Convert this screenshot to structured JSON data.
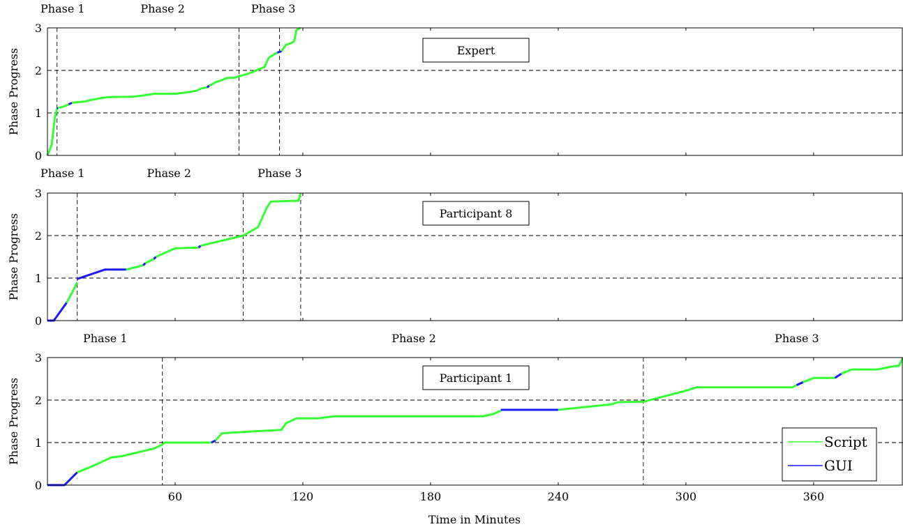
{
  "figure": {
    "xlabel": "Time in Minutes",
    "legend": {
      "placement": "bottom-right of last panel",
      "entries": [
        {
          "name": "Script",
          "color": "#33ff33"
        },
        {
          "name": "GUI",
          "color": "#1a1aff"
        }
      ]
    }
  },
  "chart_data": [
    {
      "type": "line",
      "title": "Expert",
      "ylabel": "Phase Progress",
      "xlim": [
        0,
        402
      ],
      "ylim": [
        0,
        3
      ],
      "x_ticks": [],
      "y_ticks": [
        0,
        1,
        2,
        3
      ],
      "grid": "horizontal dashed at 1 and 2",
      "phase_boundaries": [
        4.5,
        90,
        109
      ],
      "phase_labels": [
        {
          "text": "Phase 1",
          "x": 0
        },
        {
          "text": "Phase 2",
          "x": 47
        },
        {
          "text": "Phase 3",
          "x": 99
        }
      ],
      "segments": [
        {
          "tool": "Script",
          "points": [
            [
              0,
              0
            ],
            [
              2,
              0.25
            ],
            [
              3.5,
              0.9
            ],
            [
              4.5,
              1.1
            ]
          ]
        },
        {
          "tool": "GUI",
          "points": [
            [
              4.5,
              1.1
            ],
            [
              5,
              1.12
            ]
          ]
        },
        {
          "tool": "Script",
          "points": [
            [
              5,
              1.12
            ],
            [
              7,
              1.14
            ],
            [
              10,
              1.2
            ]
          ]
        },
        {
          "tool": "GUI",
          "points": [
            [
              10,
              1.2
            ],
            [
              11.5,
              1.24
            ]
          ]
        },
        {
          "tool": "Script",
          "points": [
            [
              11.5,
              1.24
            ],
            [
              18,
              1.27
            ],
            [
              20,
              1.3
            ],
            [
              28,
              1.37
            ],
            [
              40,
              1.38
            ],
            [
              45,
              1.41
            ],
            [
              50,
              1.45
            ],
            [
              60,
              1.45
            ],
            [
              65,
              1.48
            ],
            [
              70,
              1.52
            ],
            [
              72,
              1.57
            ],
            [
              75,
              1.6
            ]
          ]
        },
        {
          "tool": "GUI",
          "points": [
            [
              75,
              1.6
            ],
            [
              76,
              1.64
            ]
          ]
        },
        {
          "tool": "Script",
          "points": [
            [
              76,
              1.64
            ],
            [
              79,
              1.72
            ],
            [
              82,
              1.77
            ],
            [
              84,
              1.82
            ],
            [
              88,
              1.83
            ],
            [
              96,
              1.95
            ],
            [
              98,
              2.0
            ],
            [
              102,
              2.08
            ],
            [
              104,
              2.3
            ],
            [
              108,
              2.42
            ]
          ]
        },
        {
          "tool": "GUI",
          "points": [
            [
              108,
              2.42
            ],
            [
              110,
              2.45
            ]
          ]
        },
        {
          "tool": "Script",
          "points": [
            [
              110,
              2.45
            ],
            [
              112,
              2.6
            ],
            [
              115,
              2.65
            ],
            [
              116,
              2.7
            ],
            [
              117,
              2.95
            ],
            [
              119,
              3.0
            ]
          ]
        }
      ]
    },
    {
      "type": "line",
      "title": "Participant 8",
      "ylabel": "Phase Progress",
      "xlim": [
        0,
        402
      ],
      "ylim": [
        0,
        3
      ],
      "x_ticks": [],
      "y_ticks": [
        0,
        1,
        2,
        3
      ],
      "grid": "horizontal dashed at 1 and 2",
      "phase_boundaries": [
        14,
        92,
        119
      ],
      "phase_labels": [
        {
          "text": "Phase 1",
          "x": 0
        },
        {
          "text": "Phase 2",
          "x": 50
        },
        {
          "text": "Phase 3",
          "x": 102
        }
      ],
      "segments": [
        {
          "tool": "GUI",
          "points": [
            [
              0,
              0
            ],
            [
              3,
              0
            ],
            [
              9,
              0.42
            ]
          ]
        },
        {
          "tool": "Script",
          "points": [
            [
              9,
              0.42
            ],
            [
              12,
              0.7
            ],
            [
              14,
              0.9
            ]
          ]
        },
        {
          "tool": "GUI",
          "points": [
            [
              14,
              0.98
            ],
            [
              27,
              1.2
            ],
            [
              37,
              1.2
            ]
          ]
        },
        {
          "tool": "Script",
          "points": [
            [
              37,
              1.2
            ],
            [
              45,
              1.3
            ]
          ]
        },
        {
          "tool": "GUI",
          "points": [
            [
              45,
              1.3
            ],
            [
              46,
              1.35
            ]
          ]
        },
        {
          "tool": "Script",
          "points": [
            [
              46,
              1.35
            ],
            [
              50,
              1.45
            ]
          ]
        },
        {
          "tool": "GUI",
          "points": [
            [
              50,
              1.45
            ],
            [
              51,
              1.5
            ]
          ]
        },
        {
          "tool": "Script",
          "points": [
            [
              51,
              1.5
            ],
            [
              60,
              1.7
            ],
            [
              71,
              1.72
            ]
          ]
        },
        {
          "tool": "GUI",
          "points": [
            [
              71,
              1.72
            ],
            [
              72,
              1.76
            ]
          ]
        },
        {
          "tool": "Script",
          "points": [
            [
              72,
              1.76
            ],
            [
              92,
              2.0
            ],
            [
              99,
              2.2
            ],
            [
              103,
              2.65
            ],
            [
              105,
              2.8
            ],
            [
              118,
              2.82
            ],
            [
              119,
              3.0
            ]
          ]
        }
      ]
    },
    {
      "type": "line",
      "title": "Participant 1",
      "ylabel": "Phase Progress",
      "xlabel": "Time in Minutes",
      "xlim": [
        0,
        402
      ],
      "ylim": [
        0,
        3
      ],
      "x_ticks": [
        60,
        120,
        180,
        240,
        300,
        360
      ],
      "y_ticks": [
        0,
        1,
        2,
        3
      ],
      "grid": "horizontal dashed at 1 and 2",
      "phase_boundaries": [
        54,
        280
      ],
      "phase_labels": [
        {
          "text": "Phase 1",
          "x": 20
        },
        {
          "text": "Phase 2",
          "x": 165
        },
        {
          "text": "Phase 3",
          "x": 345
        }
      ],
      "segments": [
        {
          "tool": "GUI",
          "points": [
            [
              0,
              0
            ],
            [
              8,
              0
            ],
            [
              14,
              0.3
            ]
          ]
        },
        {
          "tool": "Script",
          "points": [
            [
              14,
              0.3
            ],
            [
              20,
              0.42
            ],
            [
              30,
              0.65
            ],
            [
              35,
              0.68
            ],
            [
              45,
              0.8
            ],
            [
              50,
              0.86
            ],
            [
              54,
              0.95
            ],
            [
              55,
              1.0
            ],
            [
              77,
              1.0
            ]
          ]
        },
        {
          "tool": "GUI",
          "points": [
            [
              77,
              1.0
            ],
            [
              79,
              1.05
            ]
          ]
        },
        {
          "tool": "Script",
          "points": [
            [
              79,
              1.05
            ],
            [
              82,
              1.22
            ],
            [
              110,
              1.3
            ],
            [
              112,
              1.45
            ],
            [
              117,
              1.57
            ],
            [
              127,
              1.57
            ],
            [
              135,
              1.62
            ],
            [
              205,
              1.62
            ],
            [
              210,
              1.68
            ],
            [
              213,
              1.75
            ]
          ]
        },
        {
          "tool": "GUI",
          "points": [
            [
              213,
              1.77
            ],
            [
              240,
              1.77
            ]
          ]
        },
        {
          "tool": "Script",
          "points": [
            [
              240,
              1.77
            ],
            [
              265,
              1.9
            ],
            [
              268,
              1.95
            ],
            [
              280,
              1.96
            ],
            [
              300,
              2.22
            ],
            [
              305,
              2.3
            ],
            [
              345,
              2.3
            ],
            [
              350,
              2.3
            ],
            [
              352,
              2.35
            ]
          ]
        },
        {
          "tool": "GUI",
          "points": [
            [
              352,
              2.35
            ],
            [
              355,
              2.42
            ]
          ]
        },
        {
          "tool": "Script",
          "points": [
            [
              355,
              2.42
            ],
            [
              360,
              2.52
            ],
            [
              370,
              2.52
            ]
          ]
        },
        {
          "tool": "GUI",
          "points": [
            [
              370,
              2.52
            ],
            [
              373,
              2.62
            ]
          ]
        },
        {
          "tool": "Script",
          "points": [
            [
              373,
              2.62
            ],
            [
              378,
              2.72
            ],
            [
              390,
              2.72
            ],
            [
              398,
              2.8
            ],
            [
              400,
              2.8
            ],
            [
              402,
              3.0
            ]
          ]
        }
      ]
    }
  ]
}
